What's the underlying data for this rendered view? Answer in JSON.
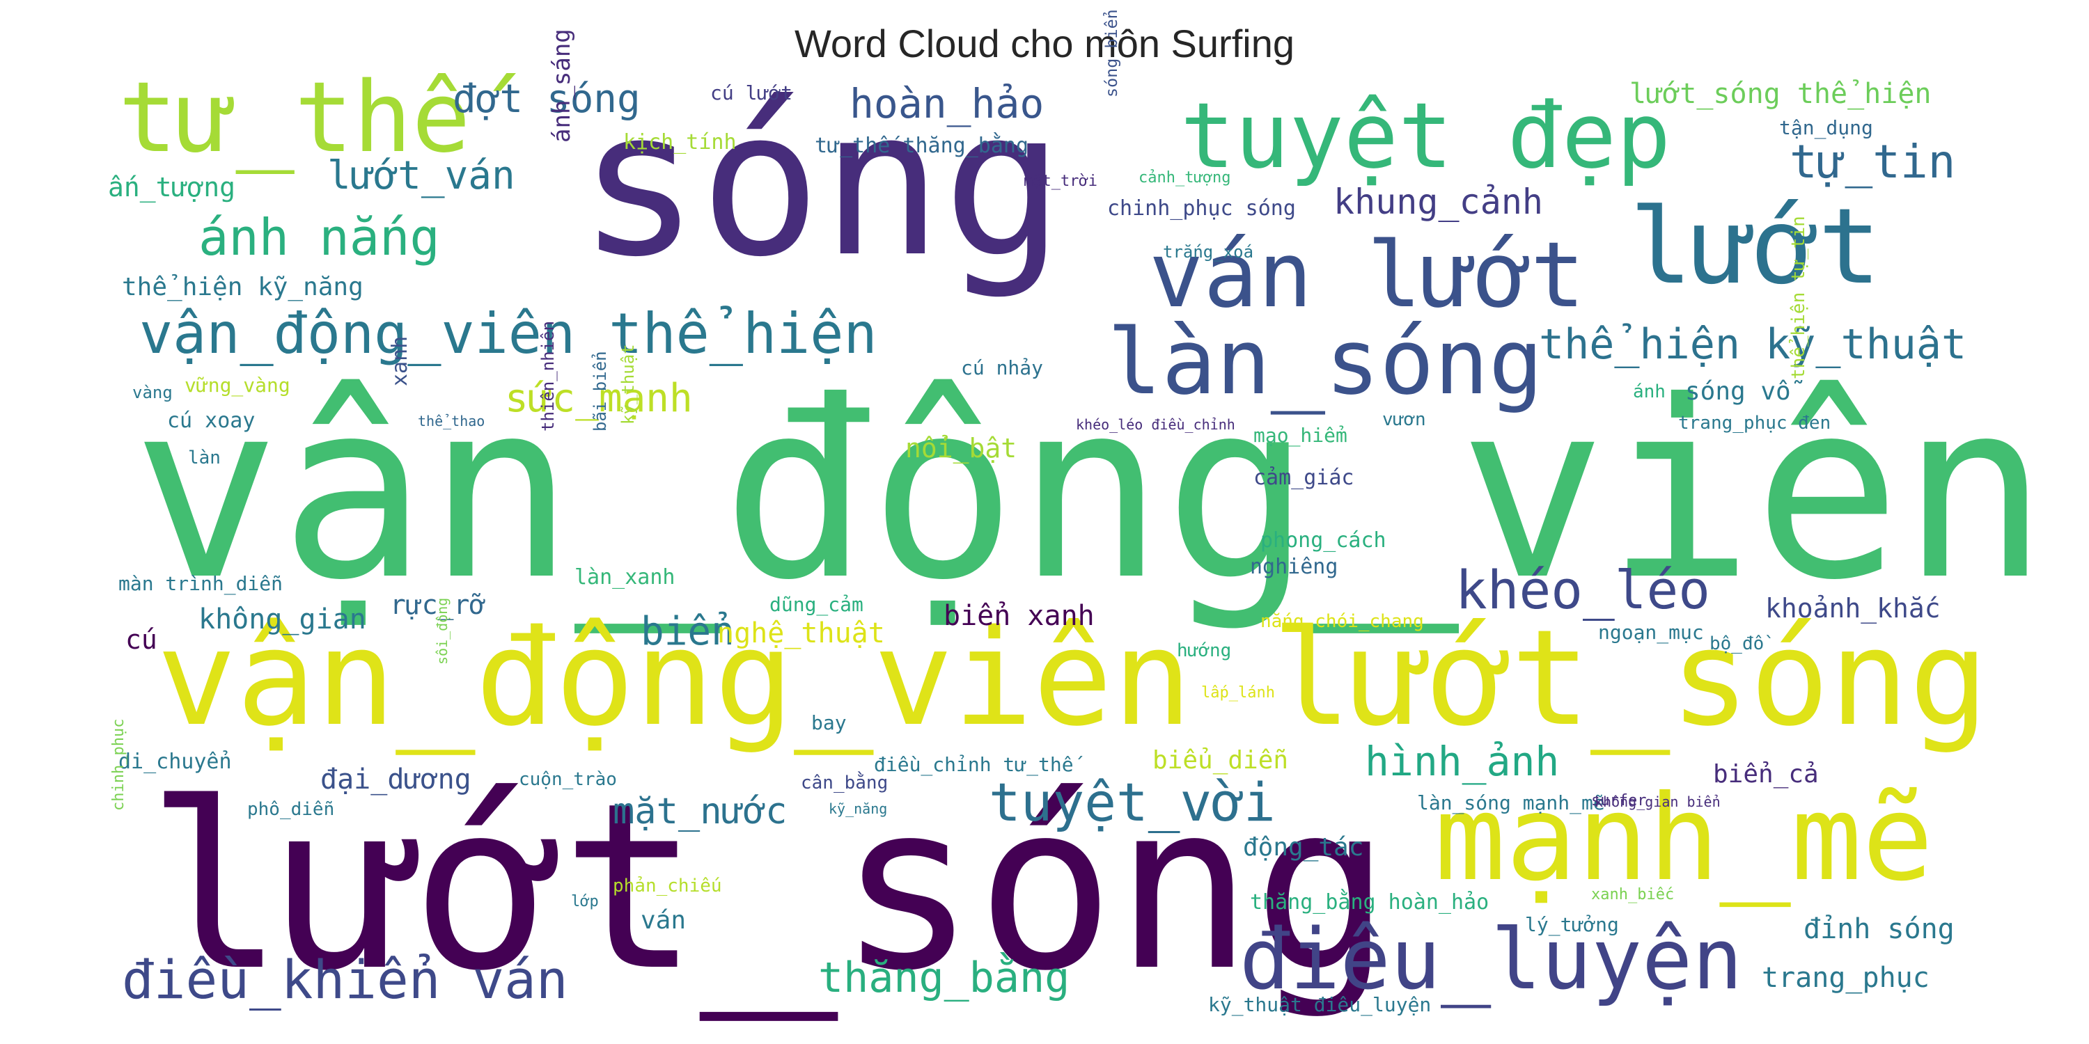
{
  "chart_data": {
    "type": "wordcloud",
    "title": "Word Cloud cho môn Surfing",
    "palette": "viridis",
    "words": [
      {
        "text": "vận_động_viên",
        "weight": 100,
        "color": "#42be71",
        "orientation": "horizontal"
      },
      {
        "text": "lướt_sóng",
        "weight": 78,
        "color": "#440154",
        "orientation": "horizontal"
      },
      {
        "text": "sóng",
        "weight": 65,
        "color": "#472d7b",
        "orientation": "horizontal"
      },
      {
        "text": "vận_động_viên lướt_sóng",
        "weight": 46,
        "color": "#dfe318",
        "orientation": "horizontal"
      },
      {
        "text": "mạnh_mẽ",
        "weight": 36,
        "color": "#dde318",
        "orientation": "horizontal"
      },
      {
        "text": "tư_thế",
        "weight": 35,
        "color": "#a5db36",
        "orientation": "horizontal"
      },
      {
        "text": "tuyệt đẹp",
        "weight": 34,
        "color": "#35b779",
        "orientation": "horizontal"
      },
      {
        "text": "lướt",
        "weight": 33,
        "color": "#2c728e",
        "orientation": "horizontal"
      },
      {
        "text": "ván lướt",
        "weight": 30,
        "color": "#3b528b",
        "orientation": "horizontal"
      },
      {
        "text": "làn_sóng",
        "weight": 29,
        "color": "#3b528b",
        "orientation": "horizontal"
      },
      {
        "text": "điêu_luyện",
        "weight": 30,
        "color": "#414487",
        "orientation": "horizontal"
      },
      {
        "text": "vận_động_viên thể_hiện",
        "weight": 20,
        "color": "#2a788e",
        "orientation": "horizontal"
      },
      {
        "text": "điều_khiển ván",
        "weight": 19,
        "color": "#3e4989",
        "orientation": "horizontal"
      },
      {
        "text": "khéo_léo",
        "weight": 18,
        "color": "#3e4989",
        "orientation": "horizontal"
      },
      {
        "text": "tuyệt_vời",
        "weight": 18,
        "color": "#2d708e",
        "orientation": "horizontal"
      },
      {
        "text": "ánh nắng",
        "weight": 17,
        "color": "#2ab07f",
        "orientation": "horizontal"
      },
      {
        "text": "tự_tin",
        "weight": 16,
        "color": "#31688e",
        "orientation": "horizontal"
      },
      {
        "text": "hoàn_hảo",
        "weight": 14,
        "color": "#39568c",
        "orientation": "horizontal"
      },
      {
        "text": "thể_hiện kỹ_thuật",
        "weight": 14,
        "color": "#2c728e",
        "orientation": "horizontal"
      },
      {
        "text": "hình_ảnh",
        "weight": 14,
        "color": "#22a884",
        "orientation": "horizontal"
      },
      {
        "text": "thăng_bằng",
        "weight": 14,
        "color": "#29af7f",
        "orientation": "horizontal"
      },
      {
        "text": "lướt_ván",
        "weight": 13,
        "color": "#2a788e",
        "orientation": "horizontal"
      },
      {
        "text": "đợt sóng",
        "weight": 13,
        "color": "#31688e",
        "orientation": "horizontal"
      },
      {
        "text": "khung_cảnh",
        "weight": 12,
        "color": "#433e85",
        "orientation": "horizontal"
      },
      {
        "text": "sức_mạnh",
        "weight": 13,
        "color": "#bddf26",
        "orientation": "horizontal"
      },
      {
        "text": "mặt_nước",
        "weight": 12,
        "color": "#2c728e",
        "orientation": "horizontal"
      },
      {
        "text": "biển",
        "weight": 13,
        "color": "#2a788e",
        "orientation": "horizontal"
      },
      {
        "text": "sóng biển",
        "weight": 12,
        "color": "#3b528b",
        "orientation": "vertical"
      },
      {
        "text": "lướt_sóng thể_hiện",
        "weight": 9,
        "color": "#6ccd5a",
        "orientation": "horizontal"
      },
      {
        "text": "khoảnh_khắc",
        "weight": 9,
        "color": "#3e4989",
        "orientation": "horizontal"
      },
      {
        "text": "biển xanh",
        "weight": 9,
        "color": "#440154",
        "orientation": "horizontal"
      },
      {
        "text": "không_gian",
        "weight": 9,
        "color": "#2a788e",
        "orientation": "horizontal"
      },
      {
        "text": "nghệ_thuật",
        "weight": 9,
        "color": "#dde318",
        "orientation": "horizontal"
      },
      {
        "text": "đại_dương",
        "weight": 9,
        "color": "#3b528b",
        "orientation": "horizontal"
      },
      {
        "text": "trang_phục",
        "weight": 9,
        "color": "#2a788e",
        "orientation": "horizontal"
      },
      {
        "text": "đỉnh sóng",
        "weight": 9,
        "color": "#2a788e",
        "orientation": "horizontal"
      },
      {
        "text": "động_tác",
        "weight": 8,
        "color": "#2a788e",
        "orientation": "horizontal"
      },
      {
        "text": "biểu_diễn",
        "weight": 8,
        "color": "#bddf26",
        "orientation": "horizontal"
      },
      {
        "text": "biển_cả",
        "weight": 8,
        "color": "#472d7b",
        "orientation": "horizontal"
      },
      {
        "text": "sóng vỗ",
        "weight": 8,
        "color": "#2a788e",
        "orientation": "horizontal"
      },
      {
        "text": "nổi_bật",
        "weight": 8,
        "color": "#a5db36",
        "orientation": "horizontal"
      },
      {
        "text": "rực_rỡ",
        "weight": 8,
        "color": "#31688e",
        "orientation": "horizontal"
      },
      {
        "text": "ấn_tượng",
        "weight": 8,
        "color": "#2ab07f",
        "orientation": "horizontal"
      },
      {
        "text": "thể_hiện kỹ_năng",
        "weight": 7,
        "color": "#2a788e",
        "orientation": "horizontal"
      },
      {
        "text": "ánh_sáng",
        "weight": 7,
        "color": "#472d7b",
        "orientation": "vertical"
      },
      {
        "text": "chinh_phục sóng",
        "weight": 6,
        "color": "#3e4989",
        "orientation": "horizontal"
      },
      {
        "text": "cú",
        "weight": 8,
        "color": "#440154",
        "orientation": "horizontal"
      },
      {
        "text": "ván",
        "weight": 7,
        "color": "#2a788e",
        "orientation": "horizontal"
      },
      {
        "text": "xanh",
        "weight": 7,
        "color": "#3b528b",
        "orientation": "vertical"
      },
      {
        "text": "tư_thế thăng_bằng",
        "weight": 6,
        "color": "#31688e",
        "orientation": "horizontal"
      },
      {
        "text": "kịch_tính",
        "weight": 6,
        "color": "#a5db36",
        "orientation": "horizontal"
      },
      {
        "text": "cú lướt",
        "weight": 6,
        "color": "#433e85",
        "orientation": "horizontal"
      },
      {
        "text": "tận_dụng",
        "weight": 6,
        "color": "#31688e",
        "orientation": "horizontal"
      },
      {
        "text": "thiên_nhiên",
        "weight": 5,
        "color": "#472d7b",
        "orientation": "vertical"
      },
      {
        "text": "bãi biển",
        "weight": 5,
        "color": "#31688e",
        "orientation": "vertical"
      },
      {
        "text": "kỹ_thuật",
        "weight": 5,
        "color": "#a5db36",
        "orientation": "vertical"
      },
      {
        "text": "vững_vàng",
        "weight": 6,
        "color": "#b5de2b",
        "orientation": "horizontal"
      },
      {
        "text": "vàng",
        "weight": 5,
        "color": "#2a788e",
        "orientation": "horizontal"
      },
      {
        "text": "cú xoay",
        "weight": 6,
        "color": "#2a788e",
        "orientation": "horizontal"
      },
      {
        "text": "làn",
        "weight": 5,
        "color": "#2a788e",
        "orientation": "horizontal"
      },
      {
        "text": "thể_thao",
        "weight": 4,
        "color": "#31688e",
        "orientation": "horizontal"
      },
      {
        "text": "màn trình_diễn",
        "weight": 6,
        "color": "#2a788e",
        "orientation": "horizontal"
      },
      {
        "text": "làn_xanh",
        "weight": 6,
        "color": "#35b779",
        "orientation": "horizontal"
      },
      {
        "text": "dũng_cảm",
        "weight": 6,
        "color": "#2ab07f",
        "orientation": "horizontal"
      },
      {
        "text": "cú nhảy",
        "weight": 6,
        "color": "#2c728e",
        "orientation": "horizontal"
      },
      {
        "text": "mạo_hiểm",
        "weight": 6,
        "color": "#35b779",
        "orientation": "horizontal"
      },
      {
        "text": "cảm_giác",
        "weight": 6,
        "color": "#3e4989",
        "orientation": "horizontal"
      },
      {
        "text": "phong_cách",
        "weight": 6,
        "color": "#2ab07f",
        "orientation": "horizontal"
      },
      {
        "text": "nghiêng",
        "weight": 6,
        "color": "#31688e",
        "orientation": "horizontal"
      },
      {
        "text": "nắng chói_chang",
        "weight": 5,
        "color": "#dde318",
        "orientation": "horizontal"
      },
      {
        "text": "hướng",
        "weight": 5,
        "color": "#2ab07f",
        "orientation": "horizontal"
      },
      {
        "text": "lấp_lánh",
        "weight": 4,
        "color": "#dde318",
        "orientation": "horizontal"
      },
      {
        "text": "bay",
        "weight": 6,
        "color": "#2a788e",
        "orientation": "horizontal"
      },
      {
        "text": "điều_chỉnh tư_thế",
        "weight": 6,
        "color": "#2a788e",
        "orientation": "horizontal"
      },
      {
        "text": "cân_bằng",
        "weight": 5,
        "color": "#3e4989",
        "orientation": "horizontal"
      },
      {
        "text": "kỹ_năng",
        "weight": 4,
        "color": "#2a788e",
        "orientation": "horizontal"
      },
      {
        "text": "cuộn_trào",
        "weight": 5,
        "color": "#2a788e",
        "orientation": "horizontal"
      },
      {
        "text": "di_chuyển",
        "weight": 6,
        "color": "#2a788e",
        "orientation": "horizontal"
      },
      {
        "text": "phô_diễn",
        "weight": 5,
        "color": "#2a788e",
        "orientation": "horizontal"
      },
      {
        "text": "sôi_động",
        "weight": 4,
        "color": "#7ad151",
        "orientation": "vertical"
      },
      {
        "text": "chinh_phục",
        "weight": 4,
        "color": "#7ad151",
        "orientation": "vertical"
      },
      {
        "text": "phản_chiếu",
        "weight": 5,
        "color": "#b5de2b",
        "orientation": "horizontal"
      },
      {
        "text": "lớp",
        "weight": 4,
        "color": "#2a788e",
        "orientation": "horizontal"
      },
      {
        "text": "thăng_bằng hoàn_hảo",
        "weight": 6,
        "color": "#2ab07f",
        "orientation": "horizontal"
      },
      {
        "text": "kỹ_thuật điêu_luyện",
        "weight": 5,
        "color": "#2a788e",
        "orientation": "horizontal"
      },
      {
        "text": "lý_tưởng",
        "weight": 6,
        "color": "#2a788e",
        "orientation": "horizontal"
      },
      {
        "text": "xanh_biếc",
        "weight": 4,
        "color": "#7ad151",
        "orientation": "horizontal"
      },
      {
        "text": "làn_sóng mạnh_mẽ",
        "weight": 5,
        "color": "#2a788e",
        "orientation": "horizontal"
      },
      {
        "text": "không_gian biển",
        "weight": 4,
        "color": "#472d7b",
        "orientation": "horizontal"
      },
      {
        "text": "surfer",
        "weight": 4,
        "color": "#472d7b",
        "orientation": "horizontal"
      },
      {
        "text": "ngoạn_mục",
        "weight": 6,
        "color": "#2a788e",
        "orientation": "horizontal"
      },
      {
        "text": "bộ_đồ",
        "weight": 5,
        "color": "#2a788e",
        "orientation": "horizontal"
      },
      {
        "text": "ánh",
        "weight": 5,
        "color": "#2ab07f",
        "orientation": "horizontal"
      },
      {
        "text": "vươn",
        "weight": 5,
        "color": "#2a788e",
        "orientation": "horizontal"
      },
      {
        "text": "trang_phục đen",
        "weight": 5,
        "color": "#2a788e",
        "orientation": "horizontal"
      },
      {
        "text": "thể_hiện tự_tin",
        "weight": 5,
        "color": "#a5db36",
        "orientation": "vertical"
      },
      {
        "text": "khéo_léo điều_chỉnh",
        "weight": 4,
        "color": "#472d7b",
        "orientation": "horizontal"
      },
      {
        "text": "trắng_xoá",
        "weight": 5,
        "color": "#2a788e",
        "orientation": "horizontal"
      },
      {
        "text": "cảnh_tượng",
        "weight": 4,
        "color": "#35b779",
        "orientation": "horizontal"
      },
      {
        "text": "mặt_trời",
        "weight": 4,
        "color": "#472d7b",
        "orientation": "horizontal"
      }
    ]
  }
}
